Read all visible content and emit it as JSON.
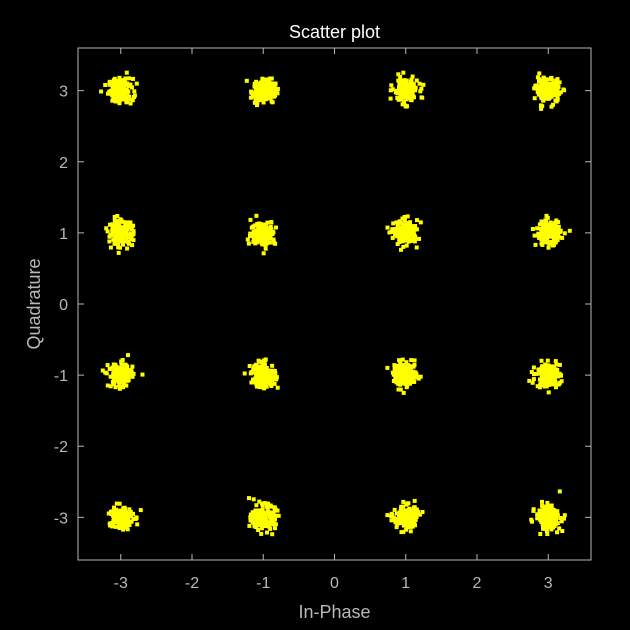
{
  "chart_data": {
    "type": "scatter",
    "title": "Scatter plot",
    "xlabel": "In-Phase",
    "ylabel": "Quadrature",
    "xlim": [
      -3.6,
      3.6
    ],
    "ylim": [
      -3.6,
      3.6
    ],
    "xticks": [
      -3,
      -2,
      -1,
      0,
      1,
      2,
      3
    ],
    "yticks": [
      -3,
      -2,
      -1,
      0,
      1,
      2,
      3
    ],
    "grid": false,
    "legend": false,
    "marker_color": "#ffff00",
    "background_color": "#000000",
    "axis_color": "#b8b8b8",
    "series": [
      {
        "constellation_points": [
          [
            -3,
            3
          ],
          [
            -1,
            3
          ],
          [
            1,
            3
          ],
          [
            3,
            3
          ],
          [
            -3,
            1
          ],
          [
            -1,
            1
          ],
          [
            1,
            1
          ],
          [
            3,
            1
          ],
          [
            -3,
            -1
          ],
          [
            -1,
            -1
          ],
          [
            1,
            -1
          ],
          [
            3,
            -1
          ],
          [
            -3,
            -3
          ],
          [
            -1,
            -3
          ],
          [
            1,
            -3
          ],
          [
            3,
            -3
          ]
        ],
        "noise_std": 0.085,
        "points_per_cluster": 160
      }
    ]
  }
}
